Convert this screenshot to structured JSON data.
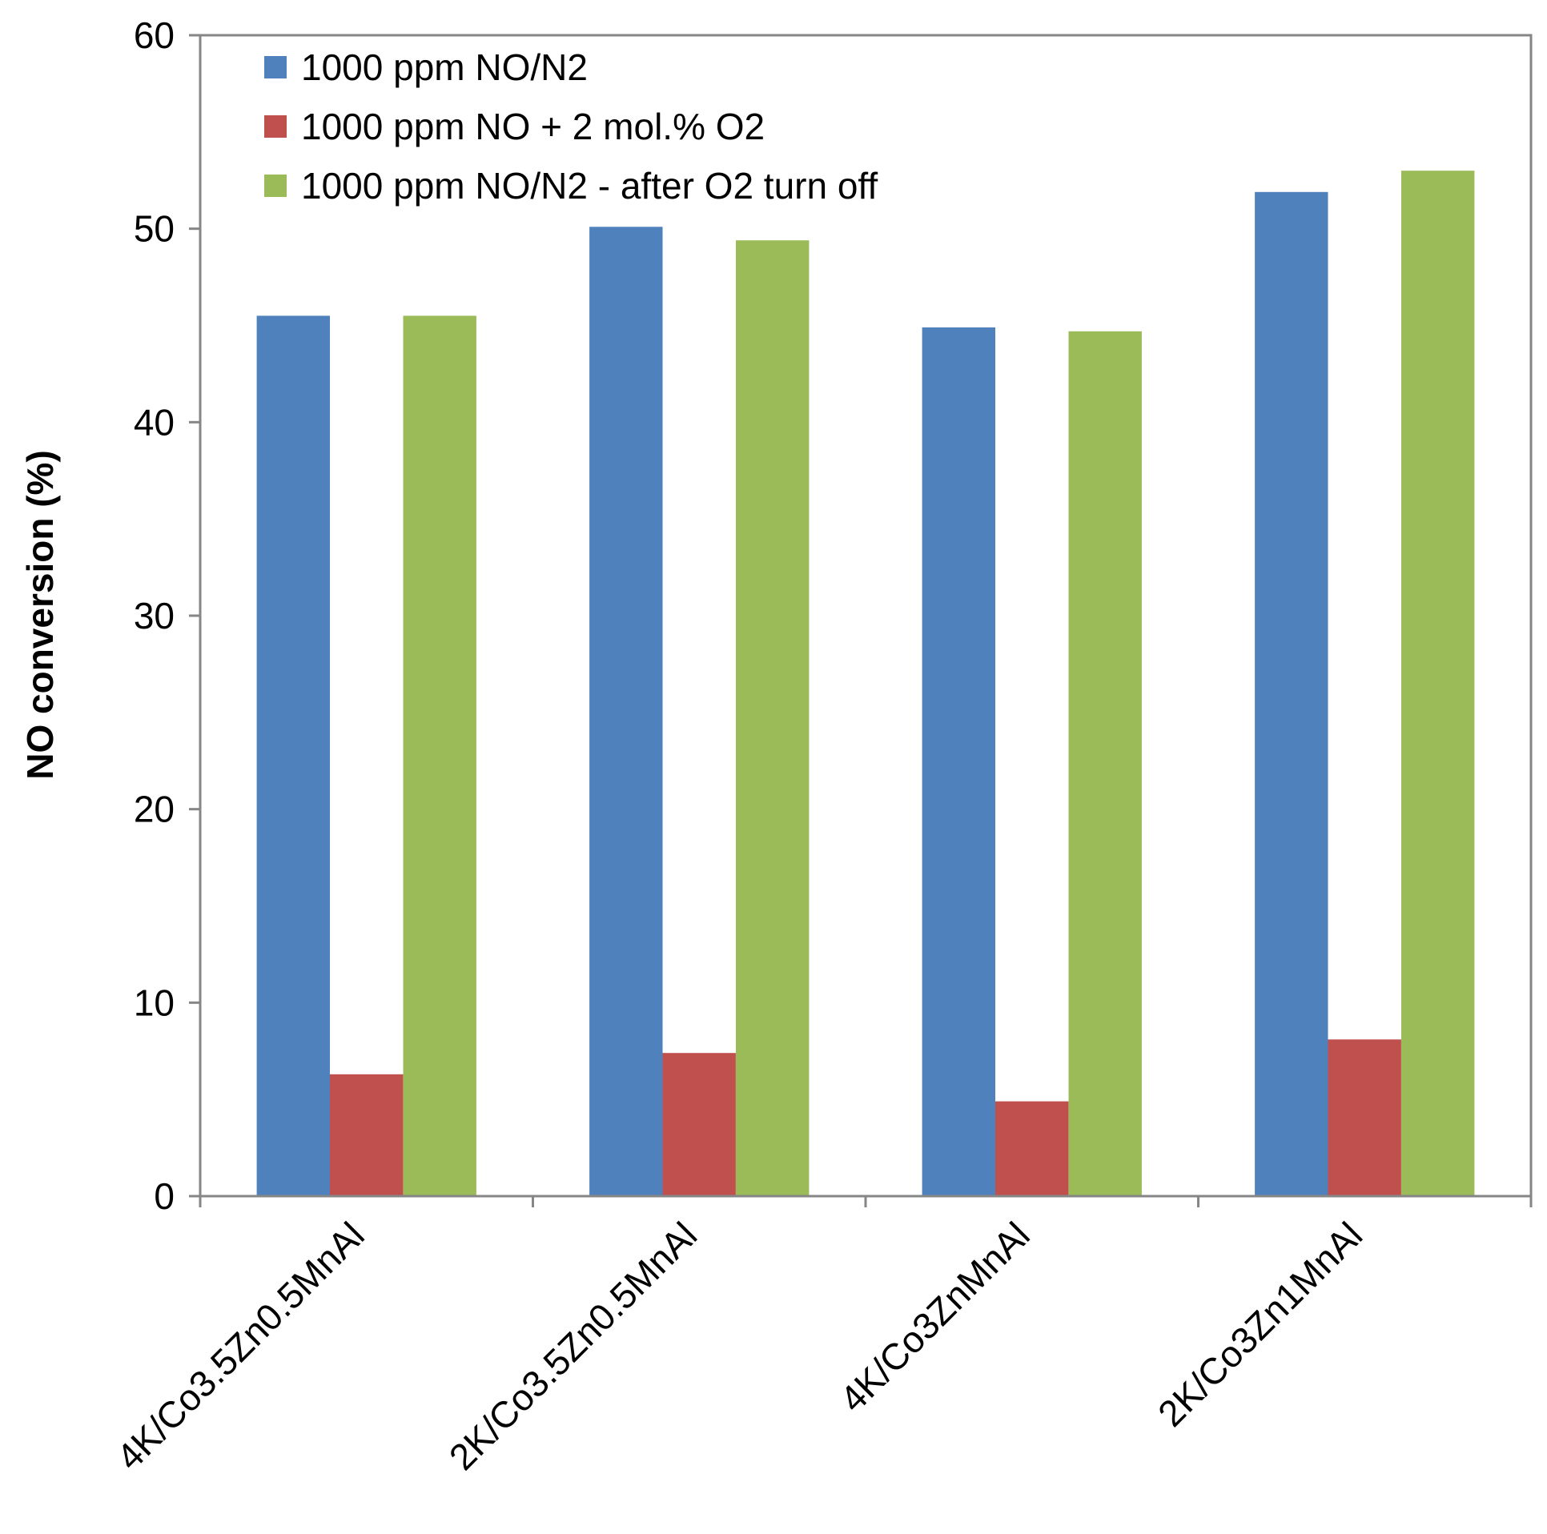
{
  "chart_data": {
    "type": "bar",
    "title": "",
    "xlabel": "",
    "ylabel": "NO conversion (%)",
    "ylim": [
      0,
      60
    ],
    "yticks": [
      0,
      10,
      20,
      30,
      40,
      50,
      60
    ],
    "grid": false,
    "legend_position": "top-left (inside)",
    "categories": [
      "4K/Co3.5Zn0.5MnAl",
      "2K/Co3.5Zn0.5MnAl",
      "4K/Co3ZnMnAl",
      "2K/Co3Zn1MnAl"
    ],
    "series": [
      {
        "name": "1000 ppm NO/N2",
        "color": "#4F81BD",
        "values": [
          45.5,
          50.1,
          44.9,
          51.9
        ]
      },
      {
        "name": "1000 ppm NO + 2 mol.% O2",
        "color": "#C0504D",
        "values": [
          6.3,
          7.4,
          4.9,
          8.1
        ]
      },
      {
        "name": "1000 ppm NO/N2 - after O2 turn off",
        "color": "#9BBB59",
        "values": [
          45.5,
          49.4,
          44.7,
          53.0
        ]
      }
    ]
  }
}
